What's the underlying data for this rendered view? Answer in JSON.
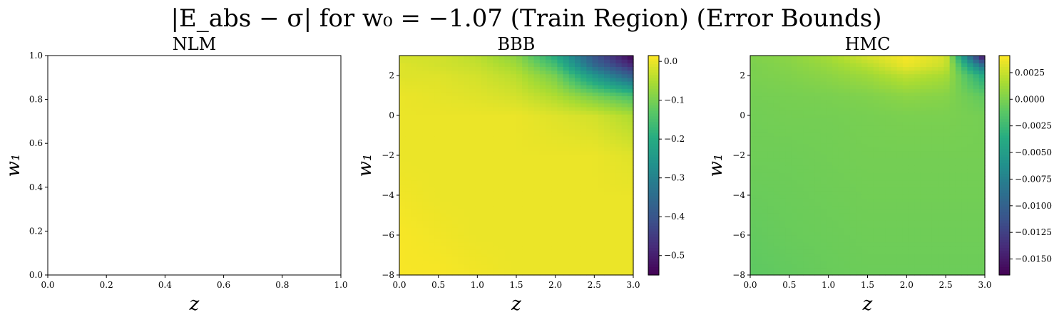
{
  "figure": {
    "suptitle": "|E_abs − σ| for w₀ = −1.07 (Train Region) (Error Bounds)"
  },
  "chart_data": [
    {
      "type": "heatmap",
      "title": "NLM",
      "xlabel": "z",
      "ylabel": "w₁",
      "xlim": [
        0.0,
        1.0
      ],
      "ylim": [
        0.0,
        1.0
      ],
      "xticks": [
        "0.0",
        "0.2",
        "0.4",
        "0.6",
        "0.8",
        "1.0"
      ],
      "yticks": [
        "0.0",
        "0.2",
        "0.4",
        "0.6",
        "0.8",
        "1.0"
      ],
      "values": [],
      "colorbar": null
    },
    {
      "type": "heatmap",
      "title": "BBB",
      "xlabel": "z",
      "ylabel": "w₁",
      "xlim": [
        0.0,
        3.0
      ],
      "ylim": [
        -8,
        3
      ],
      "xticks": [
        "0.0",
        "0.5",
        "1.0",
        "1.5",
        "2.0",
        "2.5",
        "3.0"
      ],
      "yticks": [
        "−8",
        "−6",
        "−4",
        "−2",
        "0",
        "2"
      ],
      "z_x": [
        0.0,
        0.5,
        1.0,
        1.5,
        2.0,
        2.5,
        3.0
      ],
      "z_y": [
        -8,
        -6,
        -4,
        -2,
        0,
        1,
        2,
        2.5,
        3
      ],
      "values": [
        [
          0.01,
          0.01,
          0.005,
          0.0,
          0.0,
          0.0,
          0.0
        ],
        [
          0.01,
          0.005,
          0.0,
          0.0,
          0.0,
          0.0,
          0.0
        ],
        [
          0.005,
          0.0,
          0.0,
          0.0,
          0.0,
          0.0,
          0.0
        ],
        [
          0.0,
          0.0,
          0.0,
          0.0,
          0.0,
          0.0,
          -0.01
        ],
        [
          0.0,
          0.0,
          0.0,
          0.0,
          -0.01,
          -0.02,
          -0.05
        ],
        [
          0.0,
          -0.005,
          -0.01,
          -0.02,
          -0.05,
          -0.1,
          -0.15
        ],
        [
          -0.01,
          -0.01,
          -0.02,
          -0.04,
          -0.1,
          -0.25,
          -0.38
        ],
        [
          -0.01,
          -0.02,
          -0.03,
          -0.06,
          -0.15,
          -0.35,
          -0.48
        ],
        [
          -0.02,
          -0.02,
          -0.04,
          -0.08,
          -0.2,
          -0.4,
          -0.55
        ]
      ],
      "colorbar": {
        "vmin": -0.55,
        "vmax": 0.015,
        "ticks": [
          0.0,
          -0.1,
          -0.2,
          -0.3,
          -0.4,
          -0.5
        ],
        "tick_labels": [
          "0.0",
          "−0.1",
          "−0.2",
          "−0.3",
          "−0.4",
          "−0.5"
        ],
        "colormap": "viridis"
      }
    },
    {
      "type": "heatmap",
      "title": "HMC",
      "xlabel": "z",
      "ylabel": "w₁",
      "xlim": [
        0.0,
        3.0
      ],
      "ylim": [
        -8,
        3
      ],
      "xticks": [
        "0.0",
        "0.5",
        "1.0",
        "1.5",
        "2.0",
        "2.5",
        "3.0"
      ],
      "yticks": [
        "−8",
        "−6",
        "−4",
        "−2",
        "0",
        "2"
      ],
      "z_x": [
        0.0,
        0.5,
        1.0,
        1.5,
        2.0,
        2.5,
        3.0
      ],
      "z_y": [
        -8,
        -6,
        -4,
        -2,
        0,
        1,
        2,
        2.5,
        3
      ],
      "values": [
        [
          -0.001,
          -0.0008,
          -0.0006,
          -0.0005,
          -0.0005,
          -0.0005,
          -0.0005
        ],
        [
          -0.0008,
          -0.0006,
          -0.0005,
          -0.0004,
          -0.0004,
          -0.0004,
          -0.0004
        ],
        [
          -0.0006,
          -0.0005,
          -0.0004,
          -0.0003,
          -0.0003,
          -0.0003,
          -0.0003
        ],
        [
          -0.0004,
          -0.0004,
          -0.0003,
          -0.0002,
          -0.0002,
          -0.0002,
          -0.0002
        ],
        [
          -0.0003,
          -0.0002,
          -0.0002,
          -0.0001,
          0.0,
          0.0,
          -0.0002
        ],
        [
          -0.0002,
          -0.0001,
          0.0,
          0.0002,
          0.0006,
          0.0004,
          -0.001
        ],
        [
          0.0,
          0.0002,
          0.0006,
          0.0012,
          0.0022,
          0.0015,
          -0.004
        ],
        [
          0.0,
          0.0004,
          0.001,
          0.002,
          0.0035,
          0.0025,
          -0.009
        ],
        [
          0.0002,
          0.0006,
          0.0015,
          0.003,
          0.004,
          0.003,
          -0.0165
        ]
      ],
      "colorbar": {
        "vmin": -0.0165,
        "vmax": 0.0041,
        "ticks": [
          0.0025,
          0.0,
          -0.0025,
          -0.005,
          -0.0075,
          -0.01,
          -0.0125,
          -0.015
        ],
        "tick_labels": [
          "0.0025",
          "0.0000",
          "−0.0025",
          "−0.0050",
          "−0.0075",
          "−0.0100",
          "−0.0125",
          "−0.0150"
        ],
        "colormap": "viridis"
      }
    }
  ]
}
